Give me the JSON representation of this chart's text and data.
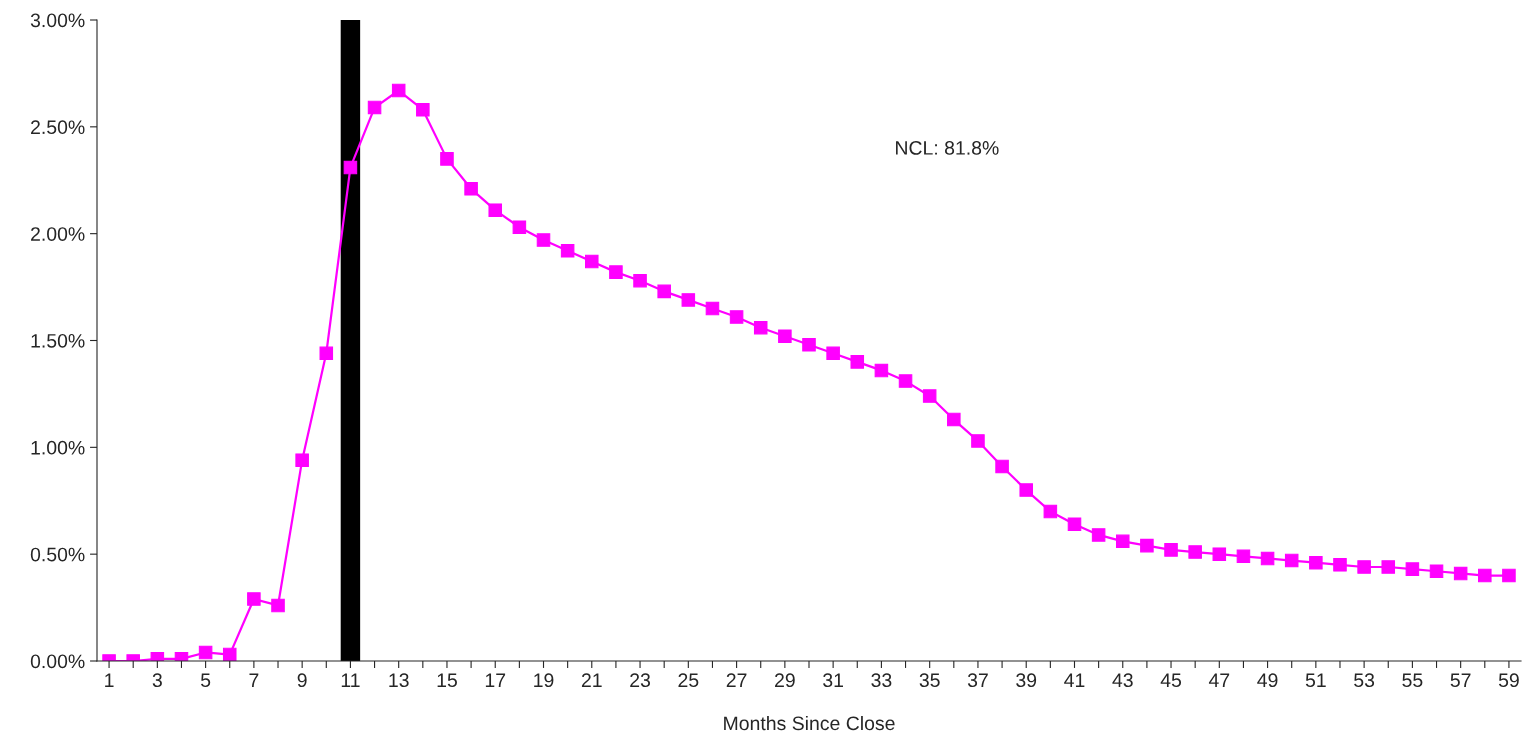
{
  "chart_data": {
    "type": "line",
    "xlabel": "Months Since Close",
    "categories": [
      "1",
      null,
      "3",
      null,
      "5",
      null,
      "7",
      null,
      "9",
      null,
      "11",
      null,
      "13",
      null,
      "15",
      null,
      "17",
      null,
      "19",
      null,
      "21",
      null,
      "23",
      null,
      "25",
      null,
      "27",
      null,
      "29",
      null,
      "31",
      null,
      "33",
      null,
      "35",
      null,
      "37",
      null,
      "39",
      null,
      "41",
      null,
      "43",
      null,
      "45",
      null,
      "47",
      null,
      "49",
      null,
      "51",
      null,
      "53",
      null,
      "55",
      null,
      "57",
      null,
      "59"
    ],
    "series": [
      {
        "color": "#ff00ff",
        "values": [
          0.0,
          0.0,
          0.01,
          0.01,
          0.04,
          0.03,
          0.29,
          0.26,
          0.94,
          1.44,
          2.31,
          2.59,
          2.67,
          2.58,
          2.35,
          2.21,
          2.11,
          2.03,
          1.97,
          1.92,
          1.87,
          1.82,
          1.78,
          1.73,
          1.69,
          1.65,
          1.61,
          1.56,
          1.52,
          1.48,
          1.44,
          1.4,
          1.36,
          1.31,
          1.24,
          1.13,
          1.03,
          0.91,
          0.8,
          0.7,
          0.64,
          0.59,
          0.56,
          0.54,
          0.52,
          0.51,
          0.5,
          0.49,
          0.48,
          0.47,
          0.46,
          0.45,
          0.44,
          0.44,
          0.43,
          0.42,
          0.41,
          0.4,
          0.4
        ]
      }
    ],
    "ylim": [
      0,
      3
    ],
    "yticks": [
      {
        "value": 0,
        "label": "0.00%"
      },
      {
        "value": 0.5,
        "label": "0.50%"
      },
      {
        "value": 1,
        "label": "1.00%"
      },
      {
        "value": 1.5,
        "label": "1.50%"
      },
      {
        "value": 2,
        "label": "2.00%"
      },
      {
        "value": 2.5,
        "label": "2.50%"
      },
      {
        "value": 3,
        "label": "3.00%"
      }
    ],
    "ref_lines": [
      {
        "axis": "x",
        "value": "11",
        "color": "#000000"
      }
    ],
    "annotations": [
      "NCL: 81.8%"
    ],
    "marker": "square",
    "line_style": "solid",
    "grid": false,
    "legend": false
  }
}
